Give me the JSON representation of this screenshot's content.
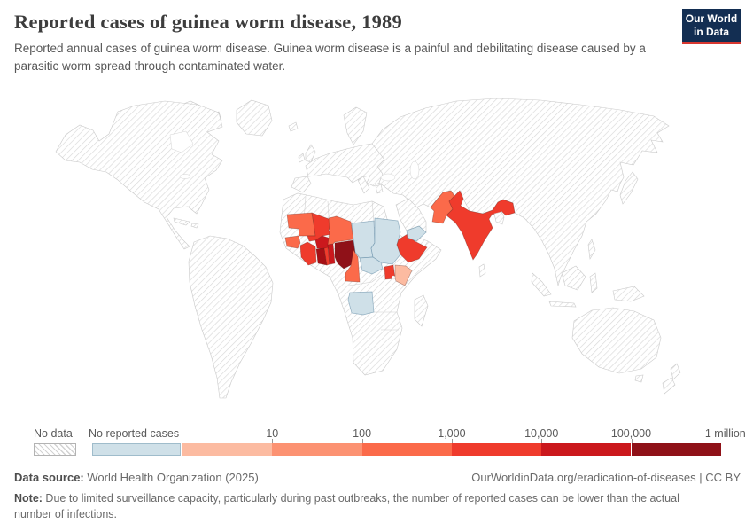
{
  "header": {
    "title": "Reported cases of guinea worm disease, 1989",
    "subtitle": "Reported annual cases of guinea worm disease. Guinea worm disease is a painful and debilitating disease caused by a parasitic worm spread through contaminated water.",
    "logo": {
      "line1": "Our World",
      "line2": "in Data",
      "bg": "#132e52",
      "accent": "#d83730"
    }
  },
  "legend": {
    "no_data_label": "No data",
    "no_cases_label": "No reported cases",
    "no_cases_color": "#cfe0e8",
    "no_cases_border": "#9fbccb",
    "bucket_colors": [
      "#fcbba1",
      "#fc9272",
      "#fb6a4a",
      "#ef3b2c",
      "#cb181d",
      "#8f1118"
    ],
    "ticks": [
      "10",
      "100",
      "1,000",
      "10,000",
      "100,000",
      "1 million"
    ]
  },
  "footer": {
    "source_label": "Data source:",
    "source_text": " World Health Organization (2025)",
    "link_text": "OurWorldinData.org/eradication-of-diseases | CC BY",
    "note_label": "Note:",
    "note_text": " Due to limited surveillance capacity, particularly during past outbreaks, the number of reported cases can be lower than the actual number of infections."
  },
  "map": {
    "no_data_style": "hatched",
    "countries": [
      {
        "id": "mauritania",
        "color": "#fb6a4a"
      },
      {
        "id": "senegal",
        "color": "#fb6a4a"
      },
      {
        "id": "mali",
        "color": "#ef3b2c"
      },
      {
        "id": "burkina-faso",
        "color": "#cb181d"
      },
      {
        "id": "cote-divoire",
        "color": "#ef3b2c"
      },
      {
        "id": "ghana",
        "color": "#a50f15"
      },
      {
        "id": "togo",
        "color": "#ef3b2c"
      },
      {
        "id": "benin",
        "color": "#cb181d"
      },
      {
        "id": "nigeria",
        "color": "#8f1118"
      },
      {
        "id": "niger",
        "color": "#fb6a4a"
      },
      {
        "id": "cameroon",
        "color": "#fb6a4a"
      },
      {
        "id": "chad",
        "color": "#cfe0e8"
      },
      {
        "id": "sudan",
        "color": "#cfe0e8"
      },
      {
        "id": "central-african-republic",
        "color": "#cfe0e8"
      },
      {
        "id": "angola",
        "color": "#cfe0e8"
      },
      {
        "id": "yemen",
        "color": "#cfe0e8"
      },
      {
        "id": "ethiopia",
        "color": "#ef3b2c"
      },
      {
        "id": "uganda",
        "color": "#ef3b2c"
      },
      {
        "id": "kenya",
        "color": "#fcbba1"
      },
      {
        "id": "pakistan",
        "color": "#fb6a4a"
      },
      {
        "id": "india",
        "color": "#ef3b2c"
      }
    ]
  }
}
